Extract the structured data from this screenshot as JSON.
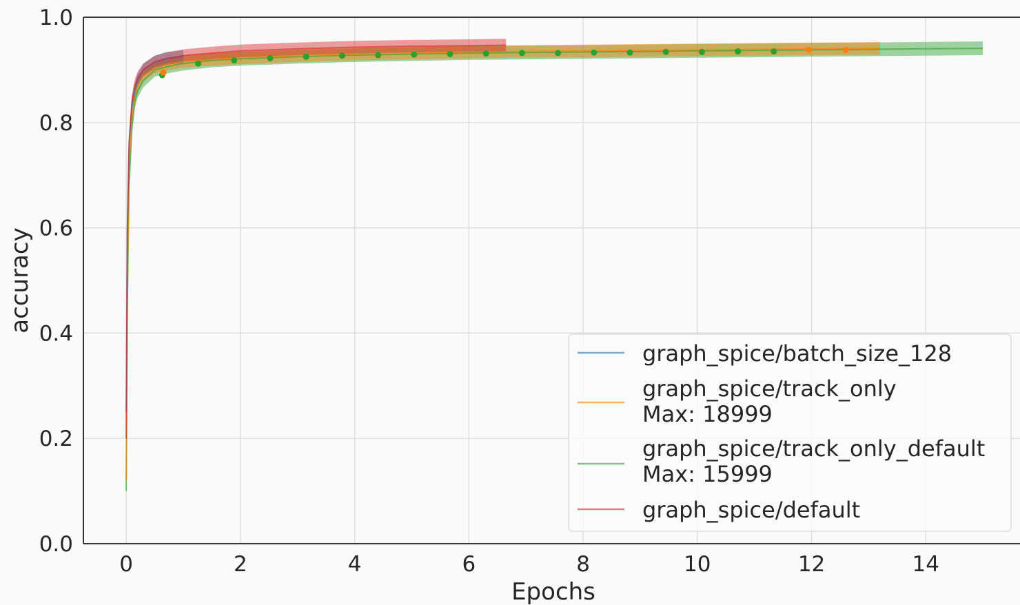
{
  "chart_data": {
    "type": "line",
    "title": "",
    "xlabel": "Epochs",
    "ylabel": "accuracy",
    "xlim": [
      -0.75,
      15.65
    ],
    "ylim": [
      0.0,
      1.0
    ],
    "xticks": [
      0,
      2,
      4,
      6,
      8,
      10,
      12,
      14
    ],
    "yticks": [
      0.0,
      0.2,
      0.4,
      0.6,
      0.8,
      1.0
    ],
    "xtick_labels": [
      "0",
      "2",
      "4",
      "6",
      "8",
      "10",
      "12",
      "14"
    ],
    "ytick_labels": [
      "0.0",
      "0.2",
      "0.4",
      "0.6",
      "0.8",
      "1.0"
    ],
    "grid": true,
    "legend_position": "lower-right",
    "series": [
      {
        "name": "graph_spice/batch_size_128",
        "color": "#1f77b4",
        "band": 0.012,
        "x": [
          0.0,
          0.02,
          0.05,
          0.1,
          0.15,
          0.2,
          0.3,
          0.5,
          0.7,
          1.0
        ],
        "y": [
          0.25,
          0.6,
          0.76,
          0.83,
          0.86,
          0.88,
          0.9,
          0.915,
          0.922,
          0.925
        ]
      },
      {
        "name": "graph_spice/track_only",
        "legend_extra": "Max: 18999",
        "color": "#ff7f0e",
        "band": 0.012,
        "x": [
          0.0,
          0.02,
          0.05,
          0.1,
          0.15,
          0.2,
          0.3,
          0.5,
          0.75,
          1.0,
          1.5,
          2.0,
          3.0,
          4.0,
          5.0,
          6.0,
          7.0,
          8.0,
          9.0,
          10.0,
          11.0,
          12.0,
          13.2
        ],
        "y": [
          0.12,
          0.5,
          0.72,
          0.81,
          0.85,
          0.87,
          0.89,
          0.905,
          0.912,
          0.916,
          0.92,
          0.923,
          0.927,
          0.93,
          0.932,
          0.934,
          0.935,
          0.936,
          0.937,
          0.938,
          0.939,
          0.94,
          0.941
        ],
        "markers_x": [
          0.65,
          11.95,
          12.6
        ],
        "markers_y": [
          0.895,
          0.938,
          0.938
        ]
      },
      {
        "name": "graph_spice/track_only_default",
        "legend_extra": "Max: 15999",
        "color": "#2ca02c",
        "band": 0.013,
        "x": [
          0.0,
          0.02,
          0.05,
          0.1,
          0.15,
          0.2,
          0.3,
          0.5,
          0.75,
          1.0,
          1.5,
          2.0,
          3.0,
          4.0,
          5.0,
          6.0,
          7.0,
          8.0,
          9.0,
          10.0,
          11.0,
          12.0,
          13.0,
          14.0,
          15.0
        ],
        "y": [
          0.1,
          0.45,
          0.68,
          0.79,
          0.84,
          0.86,
          0.88,
          0.9,
          0.907,
          0.912,
          0.918,
          0.921,
          0.925,
          0.928,
          0.93,
          0.932,
          0.933,
          0.934,
          0.935,
          0.936,
          0.937,
          0.938,
          0.939,
          0.94,
          0.941
        ],
        "markers_x": [
          0.63,
          1.26,
          1.89,
          2.52,
          3.15,
          3.78,
          4.41,
          5.04,
          5.67,
          6.3,
          6.93,
          7.56,
          8.19,
          8.82,
          9.45,
          10.08,
          10.71,
          11.34
        ],
        "markers_y": [
          0.89,
          0.912,
          0.918,
          0.922,
          0.925,
          0.927,
          0.928,
          0.929,
          0.93,
          0.931,
          0.932,
          0.932,
          0.933,
          0.933,
          0.934,
          0.934,
          0.935,
          0.935
        ]
      },
      {
        "name": "graph_spice/default",
        "color": "#d62728",
        "band": 0.012,
        "x": [
          0.0,
          0.02,
          0.05,
          0.1,
          0.15,
          0.2,
          0.3,
          0.5,
          0.75,
          1.0,
          1.5,
          2.0,
          3.0,
          4.0,
          5.0,
          6.0,
          6.65
        ],
        "y": [
          0.2,
          0.6,
          0.76,
          0.84,
          0.87,
          0.885,
          0.9,
          0.915,
          0.922,
          0.927,
          0.932,
          0.936,
          0.94,
          0.943,
          0.945,
          0.946,
          0.947
        ]
      }
    ]
  }
}
